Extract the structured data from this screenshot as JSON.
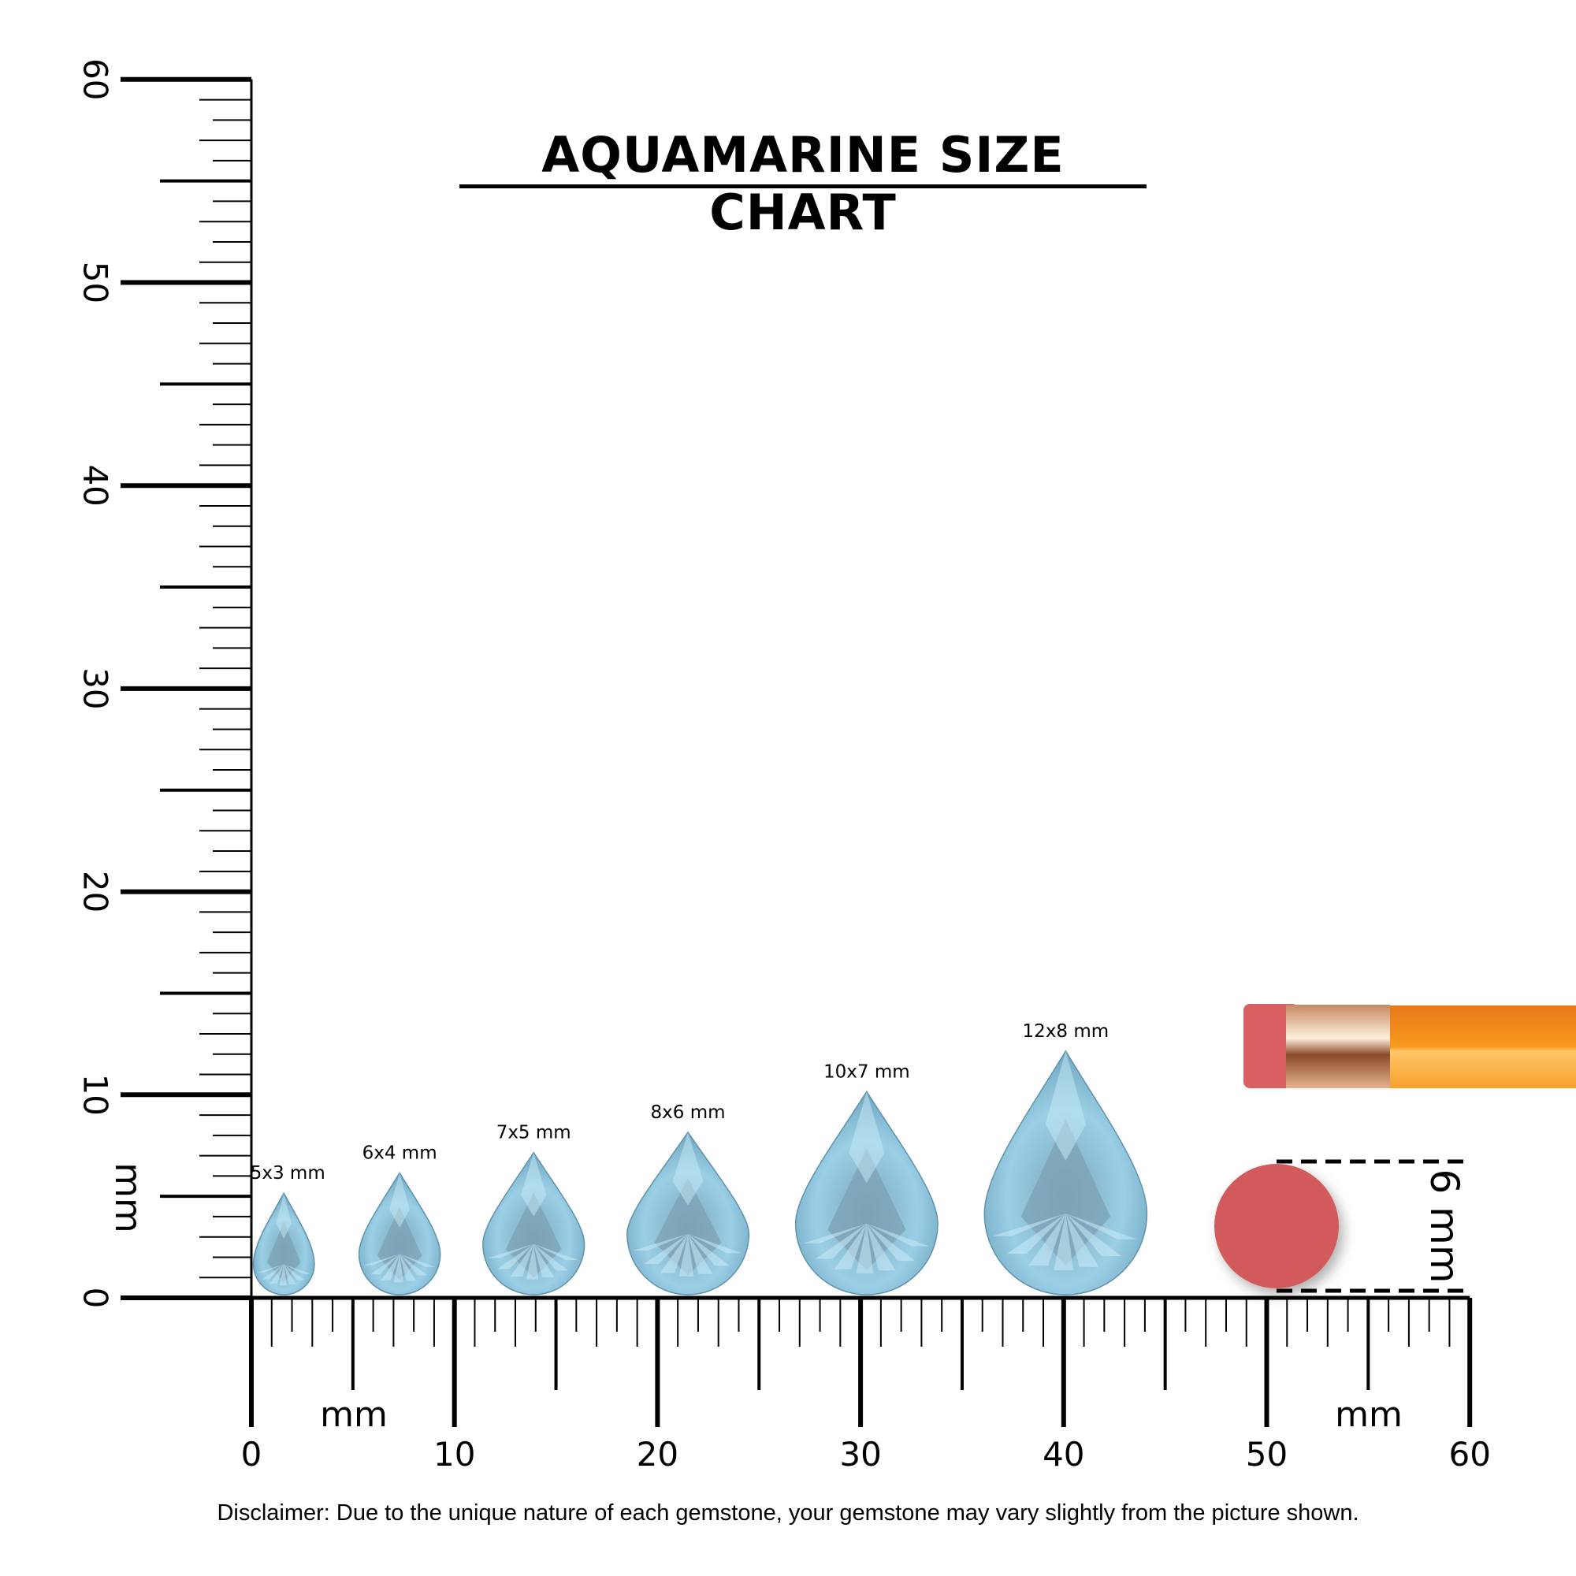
{
  "title": "AQUAMARINE SIZE CHART",
  "disclaimer": "Disclaimer: Due to the unique nature of each gemstone, your gemstone may vary slightly from the picture shown.",
  "vertical_ruler": {
    "unit_label": "mm",
    "labels": [
      "0",
      "10",
      "20",
      "30",
      "40",
      "50",
      "60"
    ],
    "range_mm": [
      0,
      60
    ]
  },
  "horizontal_ruler": {
    "unit_label": "mm",
    "labels": [
      "0",
      "10",
      "20",
      "30",
      "40",
      "50",
      "60"
    ],
    "range_mm": [
      0,
      60
    ]
  },
  "gems": [
    {
      "label": "5x3 mm",
      "length_mm": 5,
      "width_mm": 3,
      "center_mm": 1.6
    },
    {
      "label": "6x4 mm",
      "length_mm": 6,
      "width_mm": 4,
      "center_mm": 7.3
    },
    {
      "label": "7x5 mm",
      "length_mm": 7,
      "width_mm": 5,
      "center_mm": 13.9
    },
    {
      "label": "8x6 mm",
      "length_mm": 8,
      "width_mm": 6,
      "center_mm": 21.5
    },
    {
      "label": "10x7 mm",
      "length_mm": 10,
      "width_mm": 7,
      "center_mm": 30.3
    },
    {
      "label": "12x8 mm",
      "length_mm": 12,
      "width_mm": 8,
      "center_mm": 40.1
    }
  ],
  "reference": {
    "label": "6 mm",
    "diameter_mm": 6
  },
  "colors": {
    "gem": "#8fc3dc",
    "gem_dark": "#5f93ad",
    "gem_light": "#c9ebf7",
    "eraser": "#d45a5a",
    "pencil": "#f7941d",
    "ferrule": "#d9a47a"
  }
}
